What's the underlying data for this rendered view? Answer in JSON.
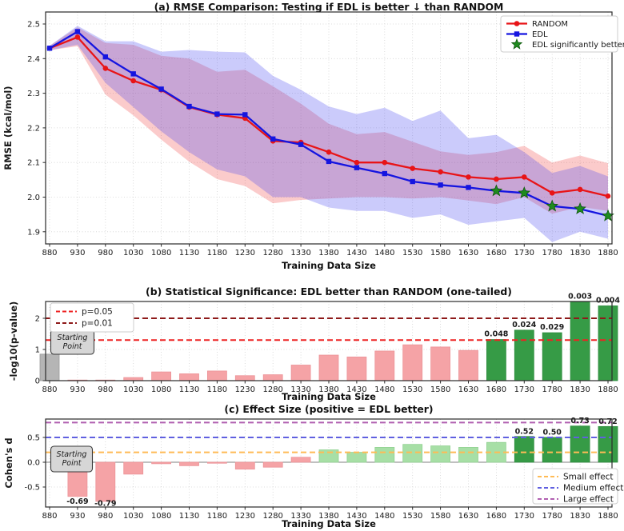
{
  "colors": {
    "random": "#e81417",
    "edl": "#1515e0",
    "random_band": "#f04040",
    "edl_band": "#4040f0",
    "star": "#1f8b1f",
    "star_edge": "#11590f",
    "p05": "#ee2222",
    "p01": "#8e1a1a",
    "bar_gray": "#b5b5b5",
    "bar_pink": "#f5a3a6",
    "bar_green": "#369b46",
    "bar_lightgreen": "#a7dfa6",
    "small": "#ffbb55",
    "medium": "#6060e0",
    "large": "#b160b1",
    "spine": "#2a2a2a",
    "grid": "#d2d2d2",
    "annotation_bg": "#d6d6d6",
    "annotation_border": "#3a3a3a"
  },
  "chart_data": [
    {
      "type": "line",
      "panel": "a",
      "title": "(a) RMSE Comparison: Testing if EDL is better ↓ than RANDOM",
      "xlabel": "Training Data Size",
      "ylabel": "RMSE (kcal/mol)",
      "x": [
        880,
        930,
        980,
        1030,
        1080,
        1130,
        1180,
        1230,
        1280,
        1330,
        1380,
        1430,
        1480,
        1530,
        1580,
        1630,
        1680,
        1730,
        1780,
        1830,
        1880
      ],
      "yticks": [
        "2.5",
        "2.4",
        "2.3",
        "2.2",
        "2.1",
        "2.0",
        "1.9"
      ],
      "ylim": [
        1.865,
        2.535
      ],
      "grid": true,
      "legend_position": "top-right",
      "series": [
        {
          "name": "RANDOM",
          "color_key": "random",
          "marker": "circle",
          "values": [
            2.43,
            2.462,
            2.372,
            2.336,
            2.31,
            2.26,
            2.238,
            2.228,
            2.162,
            2.158,
            2.13,
            2.1,
            2.1,
            2.083,
            2.073,
            2.058,
            2.052,
            2.058,
            2.012,
            2.022,
            2.003
          ],
          "band_upper": [
            2.437,
            2.49,
            2.445,
            2.44,
            2.408,
            2.4,
            2.362,
            2.368,
            2.32,
            2.27,
            2.212,
            2.182,
            2.188,
            2.16,
            2.132,
            2.122,
            2.13,
            2.148,
            2.1,
            2.12,
            2.098
          ],
          "band_lower": [
            2.424,
            2.436,
            2.296,
            2.236,
            2.166,
            2.102,
            2.052,
            2.032,
            1.982,
            1.992,
            1.996,
            2.0,
            2.0,
            1.996,
            2.0,
            1.99,
            1.98,
            2.0,
            1.952,
            1.972,
            1.96
          ]
        },
        {
          "name": "EDL",
          "color_key": "edl",
          "marker": "square",
          "values": [
            2.43,
            2.478,
            2.405,
            2.356,
            2.312,
            2.262,
            2.24,
            2.238,
            2.168,
            2.152,
            2.103,
            2.085,
            2.068,
            2.045,
            2.035,
            2.028,
            2.018,
            2.012,
            1.974,
            1.966,
            1.946
          ],
          "band_upper": [
            2.437,
            2.495,
            2.45,
            2.45,
            2.42,
            2.425,
            2.42,
            2.418,
            2.35,
            2.31,
            2.262,
            2.24,
            2.258,
            2.22,
            2.25,
            2.17,
            2.18,
            2.13,
            2.07,
            2.09,
            2.06
          ],
          "band_lower": [
            2.424,
            2.44,
            2.33,
            2.26,
            2.19,
            2.13,
            2.08,
            2.06,
            2.0,
            2.0,
            1.97,
            1.96,
            1.96,
            1.94,
            1.95,
            1.92,
            1.93,
            1.94,
            1.87,
            1.9,
            1.88
          ]
        }
      ],
      "significant_label": "EDL significantly better",
      "significant_x": [
        1680,
        1730,
        1780,
        1830,
        1880
      ]
    },
    {
      "type": "bar",
      "panel": "b",
      "title": "(b) Statistical Significance: EDL better than RANDOM (one-tailed)",
      "xlabel": "Training Data Size",
      "ylabel": "-log10(p-value)",
      "categories": [
        880,
        930,
        980,
        1030,
        1080,
        1130,
        1180,
        1230,
        1280,
        1330,
        1380,
        1430,
        1480,
        1530,
        1580,
        1630,
        1680,
        1730,
        1780,
        1830,
        1880
      ],
      "values": [
        0.85,
        0.02,
        0.02,
        0.1,
        0.28,
        0.22,
        0.31,
        0.16,
        0.19,
        0.5,
        0.82,
        0.76,
        0.95,
        1.15,
        1.08,
        0.97,
        1.3188,
        1.6198,
        1.5376,
        2.5229,
        2.3979
      ],
      "bar_colors": [
        "gray",
        "pink",
        "pink",
        "pink",
        "pink",
        "pink",
        "pink",
        "pink",
        "pink",
        "pink",
        "pink",
        "pink",
        "pink",
        "pink",
        "pink",
        "pink",
        "green",
        "green",
        "green",
        "green",
        "green"
      ],
      "bar_labels": [
        "",
        "",
        "",
        "",
        "",
        "",
        "",
        "",
        "",
        "",
        "",
        "",
        "",
        "",
        "",
        "",
        "0.048",
        "0.024",
        "0.029",
        "0.003",
        "0.004"
      ],
      "yticks": [
        "0",
        "1",
        "2"
      ],
      "ylim": [
        0,
        2.54
      ],
      "ref_lines": [
        {
          "label": "p=0.05",
          "value": 1.301,
          "color_key": "p05"
        },
        {
          "label": "p=0.01",
          "value": 2.0,
          "color_key": "p01"
        }
      ],
      "annotation": {
        "line1": "Starting",
        "line2": "Point"
      },
      "legend_position": "top-left"
    },
    {
      "type": "bar",
      "panel": "c",
      "title": "(c) Effect Size (positive = EDL better)",
      "xlabel": "Training Data Size",
      "ylabel": "Cohen's d",
      "categories": [
        880,
        930,
        980,
        1030,
        1080,
        1130,
        1180,
        1230,
        1280,
        1330,
        1380,
        1430,
        1480,
        1530,
        1580,
        1630,
        1680,
        1730,
        1780,
        1830,
        1880
      ],
      "values": [
        0,
        -0.69,
        -0.79,
        -0.24,
        -0.03,
        -0.07,
        -0.02,
        -0.14,
        -0.1,
        0.1,
        0.25,
        0.2,
        0.3,
        0.36,
        0.33,
        0.3,
        0.4,
        0.52,
        0.5,
        0.73,
        0.72
      ],
      "bar_colors": [
        "none",
        "pink",
        "pink",
        "pink",
        "pink",
        "pink",
        "pink",
        "pink",
        "pink",
        "pink",
        "lightgreen",
        "lightgreen",
        "lightgreen",
        "lightgreen",
        "lightgreen",
        "lightgreen",
        "lightgreen",
        "green",
        "green",
        "green",
        "green"
      ],
      "bar_labels": [
        "",
        "-0.69",
        "-0.79",
        "",
        "",
        "",
        "",
        "",
        "",
        "",
        "",
        "",
        "",
        "",
        "",
        "",
        "",
        "0.52",
        "0.50",
        "0.73",
        "0.72"
      ],
      "yticks": [
        "0.5",
        "0.0",
        "-0.5"
      ],
      "ylim": [
        -0.9,
        0.87
      ],
      "ref_lines": [
        {
          "label": "Small effect",
          "value": 0.2,
          "color_key": "small"
        },
        {
          "label": "Medium effect",
          "value": 0.5,
          "color_key": "medium"
        },
        {
          "label": "Large effect",
          "value": 0.8,
          "color_key": "large"
        }
      ],
      "annotation": {
        "line1": "Starting",
        "line2": "Point"
      },
      "legend_position": "bottom-right"
    }
  ]
}
